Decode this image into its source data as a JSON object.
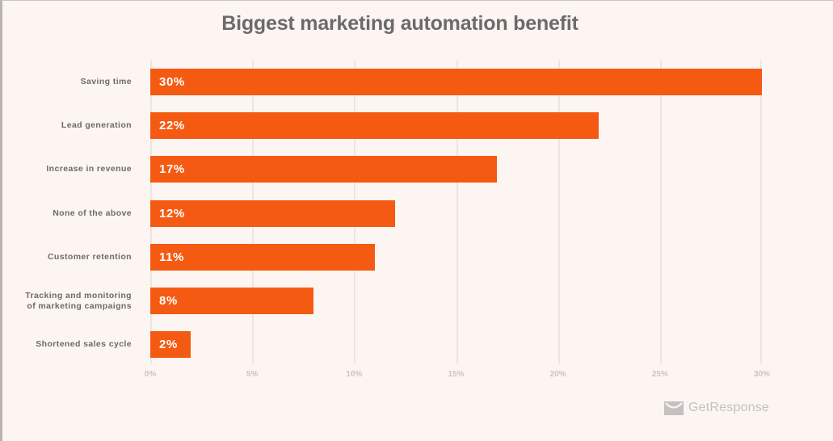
{
  "title": "Biggest marketing automation benefit",
  "brand": {
    "name": "GetResponse",
    "icon": "envelope-smile-icon",
    "color": "#c4c1c0"
  },
  "colors": {
    "bar": "#f55a13",
    "background": "#fdf5f1",
    "text": "#6b6b6b",
    "grid": "#ece6e3"
  },
  "chart_data": {
    "type": "bar",
    "orientation": "horizontal",
    "title": "Biggest marketing automation benefit",
    "categories": [
      "Saving time",
      "Lead generation",
      "Increase in revenue",
      "None of the above",
      "Customer retention",
      "Tracking and monitoring of marketing campaigns",
      "Shortened sales cycle"
    ],
    "values": [
      30,
      22,
      17,
      12,
      11,
      8,
      2
    ],
    "value_labels": [
      "30%",
      "22%",
      "17%",
      "12%",
      "11%",
      "8%",
      "2%"
    ],
    "xlabel": "",
    "ylabel": "",
    "xlim": [
      0,
      30
    ],
    "x_ticks": [
      "0%",
      "5%",
      "10%",
      "15%",
      "20%",
      "25%",
      "30%"
    ],
    "grid": true,
    "legend": null
  },
  "categories_display": [
    {
      "lines": [
        "Saving time"
      ]
    },
    {
      "lines": [
        "Lead generation"
      ]
    },
    {
      "lines": [
        "Increase in revenue"
      ]
    },
    {
      "lines": [
        "None of the above"
      ]
    },
    {
      "lines": [
        "Customer retention"
      ]
    },
    {
      "lines": [
        "Tracking and monitoring",
        "of marketing campaigns"
      ]
    },
    {
      "lines": [
        "Shortened sales cycle"
      ]
    }
  ]
}
